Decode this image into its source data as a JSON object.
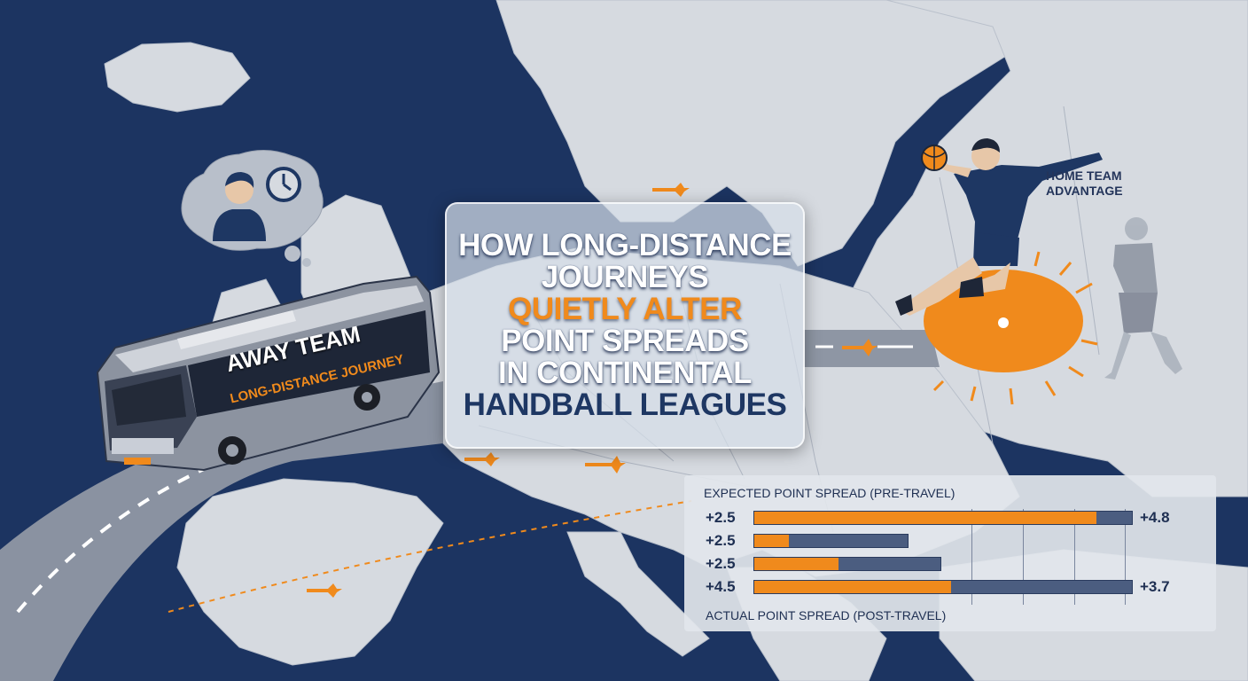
{
  "title": {
    "line1": "HOW LONG-DISTANCE",
    "line2": "JOURNEYS",
    "line3": "QUIETLY ALTER",
    "line4": "POINT SPREADS",
    "line5": "IN CONTINENTAL",
    "line6": "HANDBALL LEAGUES"
  },
  "bus": {
    "team_label": "AWAY TEAM",
    "journey_label": "LONG-DISTANCE JOURNEY"
  },
  "home": {
    "line1": "HOME TEAM",
    "line2": "ADVANTAGE"
  },
  "chart": {
    "top_caption": "EXPECTED POINT SPREAD (PRE-TRAVEL)",
    "bottom_caption": "ACTUAL POINT SPREAD (POST-TRAVEL)"
  },
  "chart_data": {
    "type": "bar",
    "title": "",
    "rows": [
      {
        "label": "+2.5",
        "fill": 0.903,
        "track": 1.0,
        "end_label": "+4.8"
      },
      {
        "label": "+2.5",
        "fill": 0.092,
        "track": 0.408,
        "end_label": ""
      },
      {
        "label": "+2.5",
        "fill": 0.221,
        "track": 0.496,
        "end_label": ""
      },
      {
        "label": "+4.5",
        "fill": 0.518,
        "track": 1.0,
        "end_label": "+3.7"
      }
    ]
  },
  "colors": {
    "sea": "#1c3461",
    "land": "#d6dae0",
    "accent": "#f08a1c",
    "navy": "#1e3763"
  },
  "icons": [
    "thought-bubble-icon",
    "clock-icon",
    "airplane-icon",
    "handball-icon"
  ]
}
